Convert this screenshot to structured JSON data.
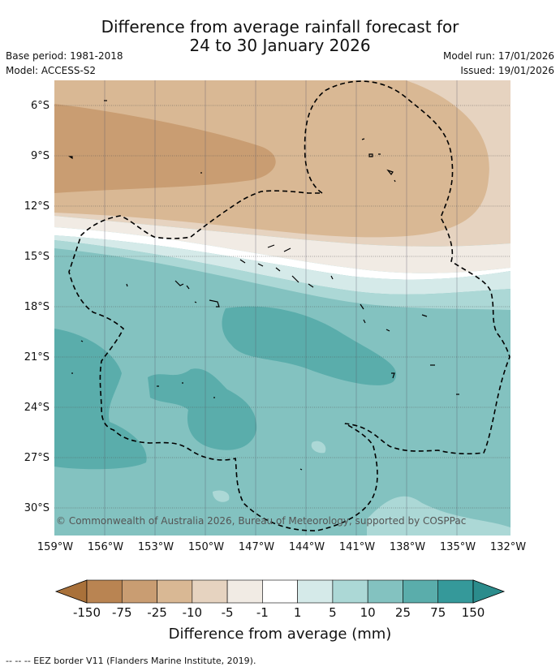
{
  "title_line1": "Difference from average rainfall forecast for",
  "title_line2": "24 to 30 January 2026",
  "base_period": "Base period: 1981-2018",
  "model": "Model: ACCESS-S2",
  "model_run": "Model run: 17/01/2026",
  "issued": "Issued: 19/01/2026",
  "lat_labels": [
    "6°S",
    "9°S",
    "12°S",
    "15°S",
    "18°S",
    "21°S",
    "24°S",
    "27°S",
    "30°S"
  ],
  "lon_labels": [
    "159°W",
    "156°W",
    "153°W",
    "150°W",
    "147°W",
    "144°W",
    "141°W",
    "138°W",
    "135°W",
    "132°W"
  ],
  "copyright": "© Commonwealth of Australia 2026, Bureau of Meteorology, supported by COSPPac",
  "colorbar": {
    "ticks": [
      "-150",
      "-75",
      "-25",
      "-10",
      "-5",
      "-1",
      "1",
      "5",
      "10",
      "25",
      "75",
      "150"
    ],
    "colors": [
      "#a9713a",
      "#b98452",
      "#c99d72",
      "#d9b894",
      "#e6d3c0",
      "#f1ebe4",
      "#ffffff",
      "#d5eae9",
      "#acd8d6",
      "#83c2c0",
      "#5aadab",
      "#35999a",
      "#2b8c8c"
    ],
    "label": "Difference from average (mm)"
  },
  "footnote": "-- -- -- EEZ border V11 (Flanders Marine Institute, 2019)."
}
